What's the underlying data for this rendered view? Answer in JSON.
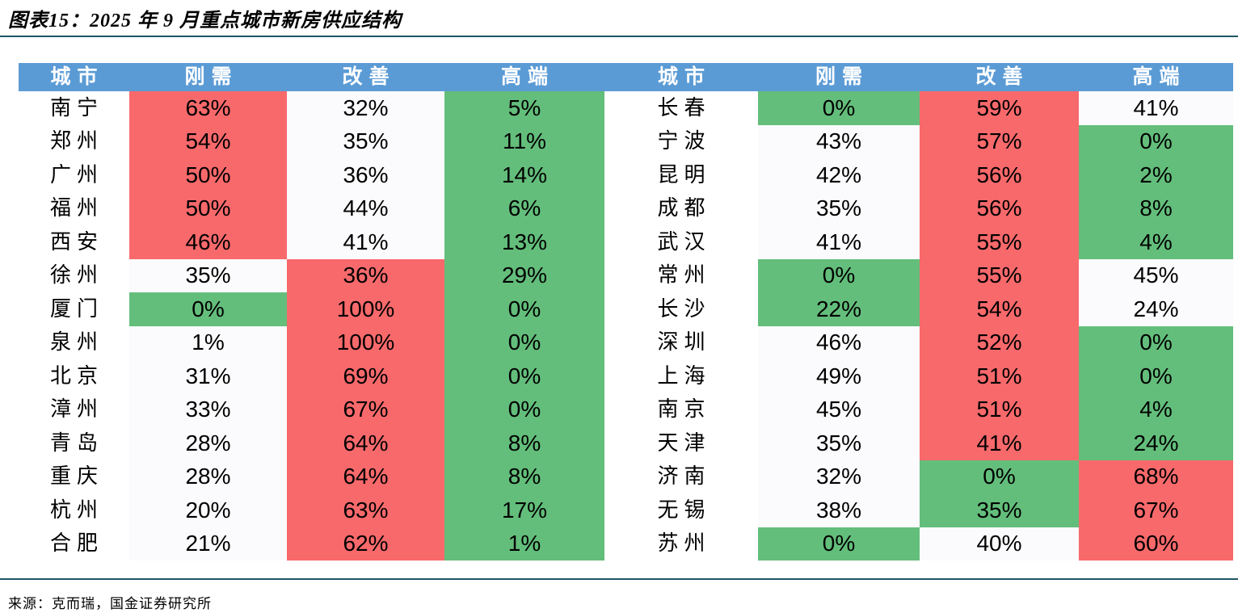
{
  "title": "图表15：2025 年 9 月重点城市新房供应结构",
  "source": "来源：克而瑞，国金证券研究所",
  "colors": {
    "header_bg": "#5b9bd5",
    "header_text": "#ffffff",
    "red_cell": "#f8696b",
    "green_cell": "#63be7b",
    "neutral_cell": "#fbfbfd",
    "rule_line": "#1d5666"
  },
  "chart_data": {
    "type": "table",
    "title": "图表15：2025 年 9 月重点城市新房供应结构",
    "columns": [
      "城市",
      "刚需",
      "改善",
      "高端"
    ],
    "color_legend": {
      "red": "行内最大值",
      "green": "行内最小值",
      "white": "行内中间值"
    },
    "panels": [
      {
        "rows": [
          {
            "city": "南宁",
            "values": [
              "63%",
              "32%",
              "5%"
            ],
            "colors": [
              "red",
              "white",
              "green"
            ]
          },
          {
            "city": "郑州",
            "values": [
              "54%",
              "35%",
              "11%"
            ],
            "colors": [
              "red",
              "white",
              "green"
            ]
          },
          {
            "city": "广州",
            "values": [
              "50%",
              "36%",
              "14%"
            ],
            "colors": [
              "red",
              "white",
              "green"
            ]
          },
          {
            "city": "福州",
            "values": [
              "50%",
              "44%",
              "6%"
            ],
            "colors": [
              "red",
              "white",
              "green"
            ]
          },
          {
            "city": "西安",
            "values": [
              "46%",
              "41%",
              "13%"
            ],
            "colors": [
              "red",
              "white",
              "green"
            ]
          },
          {
            "city": "徐州",
            "values": [
              "35%",
              "36%",
              "29%"
            ],
            "colors": [
              "white",
              "red",
              "green"
            ]
          },
          {
            "city": "厦门",
            "values": [
              "0%",
              "100%",
              "0%"
            ],
            "colors": [
              "green",
              "red",
              "green"
            ]
          },
          {
            "city": "泉州",
            "values": [
              "1%",
              "100%",
              "0%"
            ],
            "colors": [
              "white",
              "red",
              "green"
            ]
          },
          {
            "city": "北京",
            "values": [
              "31%",
              "69%",
              "0%"
            ],
            "colors": [
              "white",
              "red",
              "green"
            ]
          },
          {
            "city": "漳州",
            "values": [
              "33%",
              "67%",
              "0%"
            ],
            "colors": [
              "white",
              "red",
              "green"
            ]
          },
          {
            "city": "青岛",
            "values": [
              "28%",
              "64%",
              "8%"
            ],
            "colors": [
              "white",
              "red",
              "green"
            ]
          },
          {
            "city": "重庆",
            "values": [
              "28%",
              "64%",
              "8%"
            ],
            "colors": [
              "white",
              "red",
              "green"
            ]
          },
          {
            "city": "杭州",
            "values": [
              "20%",
              "63%",
              "17%"
            ],
            "colors": [
              "white",
              "red",
              "green"
            ]
          },
          {
            "city": "合肥",
            "values": [
              "21%",
              "62%",
              "1%"
            ],
            "colors": [
              "white",
              "red",
              "green"
            ]
          }
        ]
      },
      {
        "rows": [
          {
            "city": "长春",
            "values": [
              "0%",
              "59%",
              "41%"
            ],
            "colors": [
              "green",
              "red",
              "white"
            ]
          },
          {
            "city": "宁波",
            "values": [
              "43%",
              "57%",
              "0%"
            ],
            "colors": [
              "white",
              "red",
              "green"
            ]
          },
          {
            "city": "昆明",
            "values": [
              "42%",
              "56%",
              "2%"
            ],
            "colors": [
              "white",
              "red",
              "green"
            ]
          },
          {
            "city": "成都",
            "values": [
              "35%",
              "56%",
              "8%"
            ],
            "colors": [
              "white",
              "red",
              "green"
            ]
          },
          {
            "city": "武汉",
            "values": [
              "41%",
              "55%",
              "4%"
            ],
            "colors": [
              "white",
              "red",
              "green"
            ]
          },
          {
            "city": "常州",
            "values": [
              "0%",
              "55%",
              "45%"
            ],
            "colors": [
              "green",
              "red",
              "white"
            ]
          },
          {
            "city": "长沙",
            "values": [
              "22%",
              "54%",
              "24%"
            ],
            "colors": [
              "green",
              "red",
              "white"
            ]
          },
          {
            "city": "深圳",
            "values": [
              "46%",
              "52%",
              "0%"
            ],
            "colors": [
              "white",
              "red",
              "green"
            ]
          },
          {
            "city": "上海",
            "values": [
              "49%",
              "51%",
              "0%"
            ],
            "colors": [
              "white",
              "red",
              "green"
            ]
          },
          {
            "city": "南京",
            "values": [
              "45%",
              "51%",
              "4%"
            ],
            "colors": [
              "white",
              "red",
              "green"
            ]
          },
          {
            "city": "天津",
            "values": [
              "35%",
              "41%",
              "24%"
            ],
            "colors": [
              "white",
              "red",
              "green"
            ]
          },
          {
            "city": "济南",
            "values": [
              "32%",
              "0%",
              "68%"
            ],
            "colors": [
              "white",
              "green",
              "red"
            ]
          },
          {
            "city": "无锡",
            "values": [
              "38%",
              "35%",
              "67%"
            ],
            "colors": [
              "white",
              "green",
              "red"
            ]
          },
          {
            "city": "苏州",
            "values": [
              "0%",
              "40%",
              "60%"
            ],
            "colors": [
              "green",
              "white",
              "red"
            ]
          }
        ]
      }
    ]
  }
}
